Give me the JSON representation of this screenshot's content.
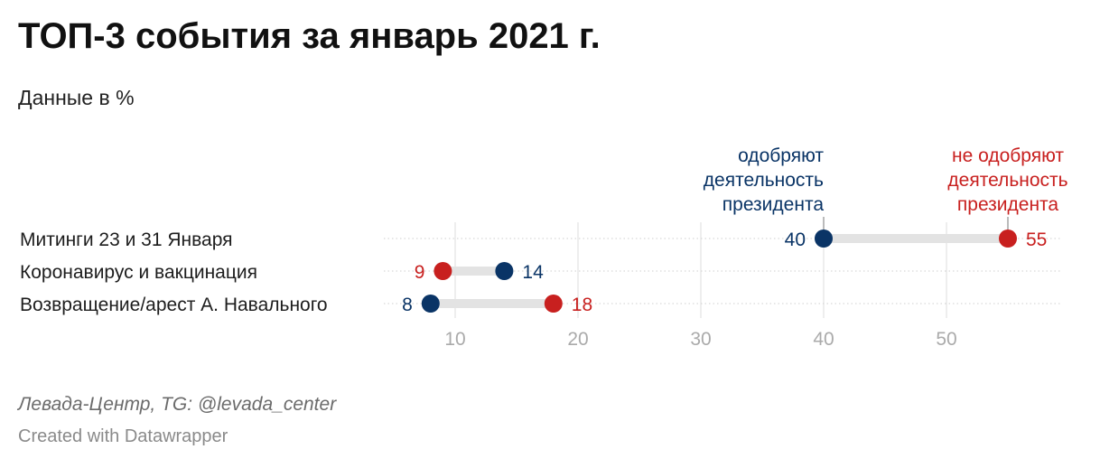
{
  "title": "ТОП-3 события за январь 2021 г.",
  "subtitle": "Данные в %",
  "source": "Левада-Центр, TG: @levada_center",
  "credit": "Created with Datawrapper",
  "colors": {
    "approve": "#0a3466",
    "disapprove": "#c8201f",
    "range": "#e3e3e3",
    "grid": "#dedede",
    "tick": "#aaaaaa"
  },
  "chart_data": {
    "type": "range-dot",
    "title": "ТОП-3 события за январь 2021 г.",
    "subtitle": "Данные в %",
    "categories": [
      "Митинги 23 и 31 Января",
      "Коронавирус и вакцинация",
      "Возвращение/арест А. Навального"
    ],
    "series": [
      {
        "name": "одобряют деятельность президента",
        "name_lines": [
          "одобряют",
          "деятельность",
          "президента"
        ],
        "values": [
          40,
          14,
          8
        ]
      },
      {
        "name": "не одобряют деятельность президента",
        "name_lines": [
          "не одобряют",
          "деятельность",
          "президента"
        ],
        "values": [
          55,
          9,
          18
        ]
      }
    ],
    "x_ticks": [
      10,
      20,
      30,
      40,
      50
    ],
    "xlim": [
      4,
      60
    ],
    "grid": true
  }
}
